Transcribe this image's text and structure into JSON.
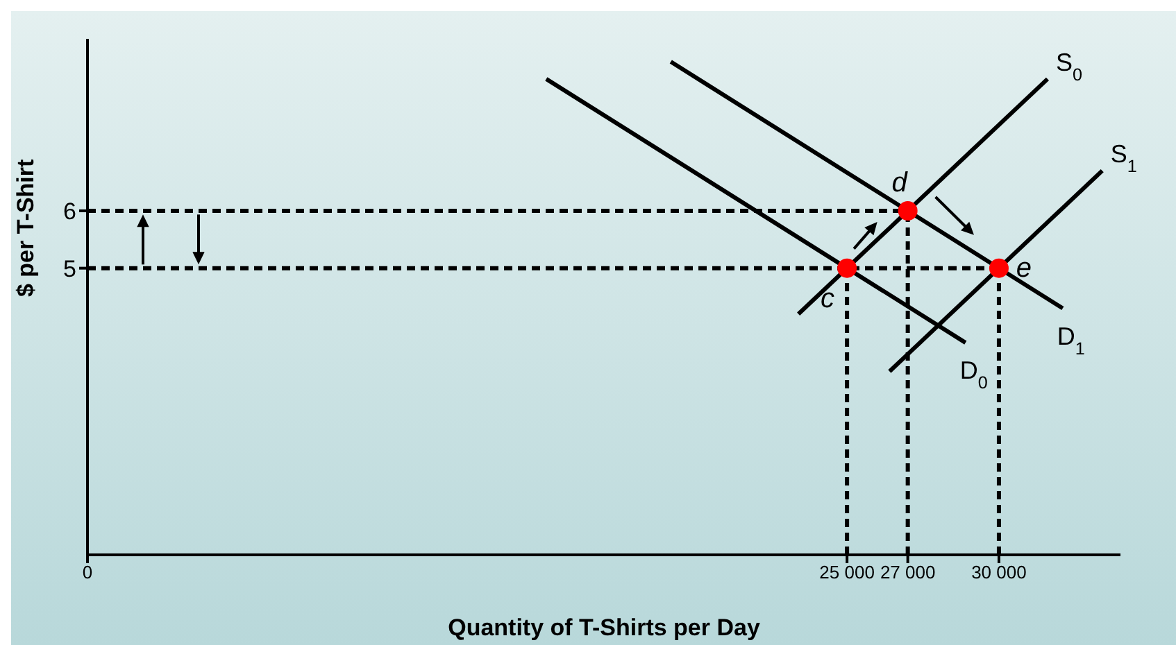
{
  "chart_data": {
    "type": "line",
    "xlabel": "Quantity of T-Shirts per Day",
    "ylabel": "$ per T-Shirt",
    "xlim": [
      0,
      34000
    ],
    "ylim": [
      0,
      9
    ],
    "xticks": [
      0,
      {
        "value": 25000,
        "label": "25 000"
      },
      {
        "value": 27000,
        "label": "27 000"
      },
      {
        "value": 30000,
        "label": "30 000"
      }
    ],
    "yticks": [
      5,
      6
    ],
    "grid": false,
    "legend": false,
    "line_style": "solid",
    "marker": "none",
    "series": [
      {
        "name": "S$_{0}$",
        "color": "#000000",
        "x": [
          23400,
          31600
        ],
        "values": [
          4.2,
          8.3
        ]
      },
      {
        "name": "S$_{1}$",
        "color": "#000000",
        "x": [
          26400,
          33400
        ],
        "values": [
          3.2,
          6.7
        ]
      },
      {
        "name": "D$_{0}$",
        "color": "#000000",
        "x": [
          15100,
          28900
        ],
        "values": [
          8.3,
          3.7
        ]
      },
      {
        "name": "D$_{1}$",
        "color": "#000000",
        "x": [
          19200,
          32100
        ],
        "values": [
          8.6,
          4.3
        ]
      },
      {
        "color": "#000000",
        "line_style": "dashed",
        "x": [
          0,
          27000
        ],
        "values": [
          6,
          6
        ]
      },
      {
        "color": "#000000",
        "line_style": "dashed",
        "x": [
          0,
          30000
        ],
        "values": [
          5,
          5
        ]
      },
      {
        "color": "#000000",
        "line_style": "dashed",
        "x": [
          25000,
          25000
        ],
        "values": [
          0,
          5
        ]
      },
      {
        "color": "#000000",
        "line_style": "dashed",
        "x": [
          27000,
          27000
        ],
        "values": [
          0,
          6
        ]
      },
      {
        "color": "#000000",
        "line_style": "dashed",
        "x": [
          30000,
          30000
        ],
        "values": [
          0,
          5
        ]
      },
      {
        "type": "scatter",
        "color": "#ff0000",
        "marker": "circle",
        "x": [
          25000,
          27000,
          30000
        ],
        "values": [
          5,
          6,
          5
        ]
      }
    ],
    "annotations": [
      {
        "text": "c",
        "x": 25000,
        "y": 5
      },
      {
        "text": "d",
        "x": 27000,
        "y": 6
      },
      {
        "text": "e",
        "x": 30000,
        "y": 5
      }
    ]
  }
}
